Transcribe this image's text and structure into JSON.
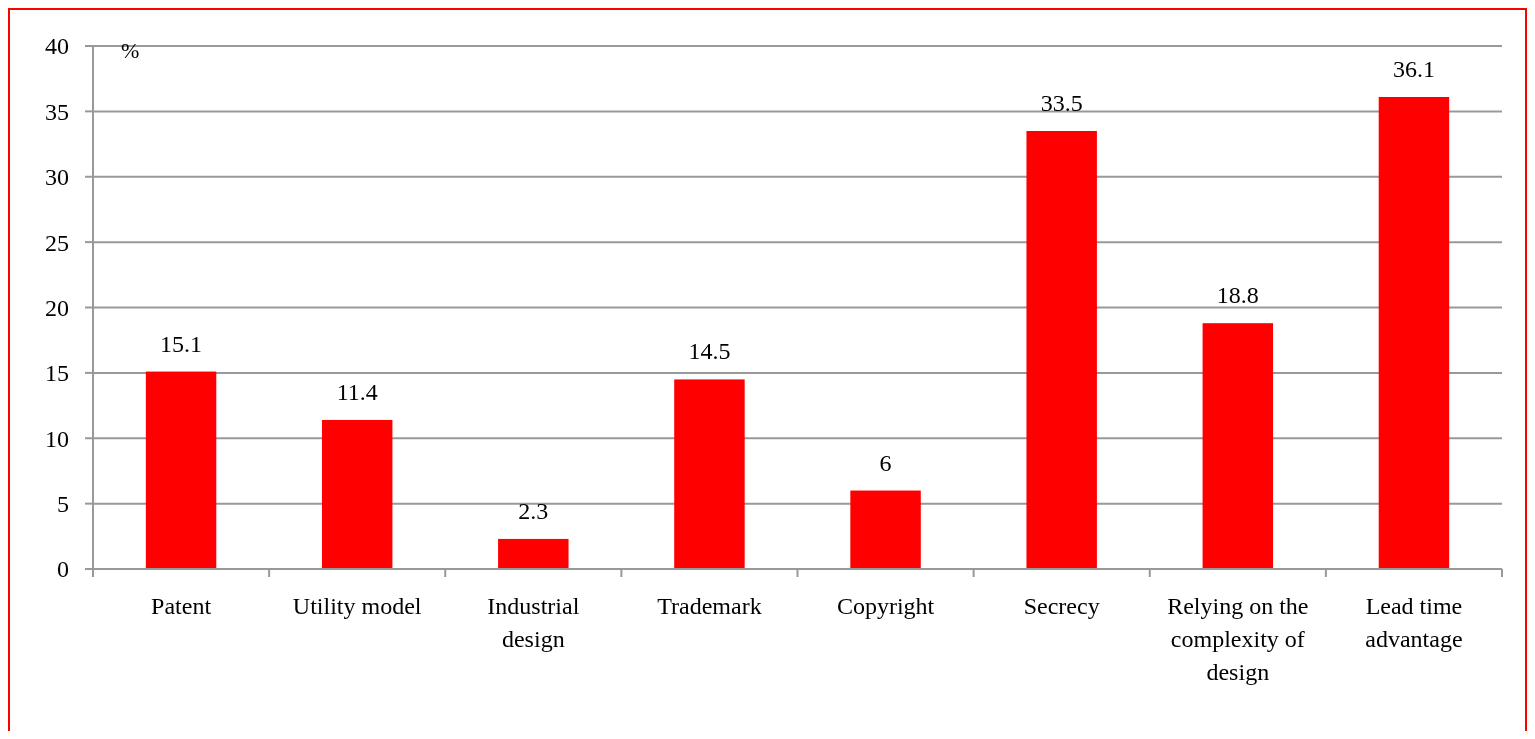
{
  "chart_data": {
    "type": "bar",
    "ylabel": "%",
    "categories": [
      "Patent",
      "Utility model",
      "Industrial design",
      "Trademark",
      "Copyright",
      "Secrecy",
      "Relying on the complexity of design",
      "Lead time advantage"
    ],
    "values": [
      15.1,
      11.4,
      2.3,
      14.5,
      6,
      33.5,
      18.8,
      36.1
    ],
    "color": "#ff0000",
    "ylim": [
      0,
      40
    ],
    "yticks": [
      0,
      5,
      10,
      15,
      20,
      25,
      30,
      35,
      40
    ],
    "grid": "y",
    "data_labels": true
  }
}
